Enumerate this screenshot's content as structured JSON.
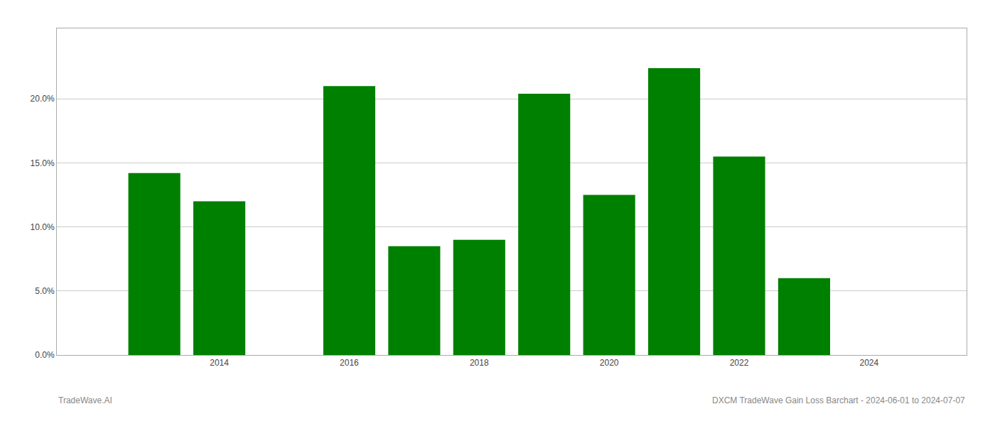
{
  "chart_data": {
    "type": "bar",
    "x": [
      2013,
      2014,
      2016,
      2017,
      2018,
      2019,
      2020,
      2021,
      2022,
      2023
    ],
    "values": [
      0.142,
      0.12,
      0.21,
      0.085,
      0.09,
      0.204,
      0.125,
      0.224,
      0.155,
      0.06
    ],
    "color": "#008000",
    "xlim": [
      2011.5,
      2025.5
    ],
    "xticks": [
      2014,
      2016,
      2018,
      2020,
      2022,
      2024
    ],
    "ylim": [
      0,
      0.255
    ],
    "yticks": [
      {
        "value": 0.0,
        "label": "0.0%"
      },
      {
        "value": 0.05,
        "label": "5.0%"
      },
      {
        "value": 0.1,
        "label": "10.0%"
      },
      {
        "value": 0.15,
        "label": "15.0%"
      },
      {
        "value": 0.2,
        "label": "20.0%"
      }
    ],
    "grid": true,
    "annotations": [
      "TradeWave.AI",
      "DXCM TradeWave Gain Loss Barchart - 2024-06-01 to 2024-07-07"
    ]
  }
}
